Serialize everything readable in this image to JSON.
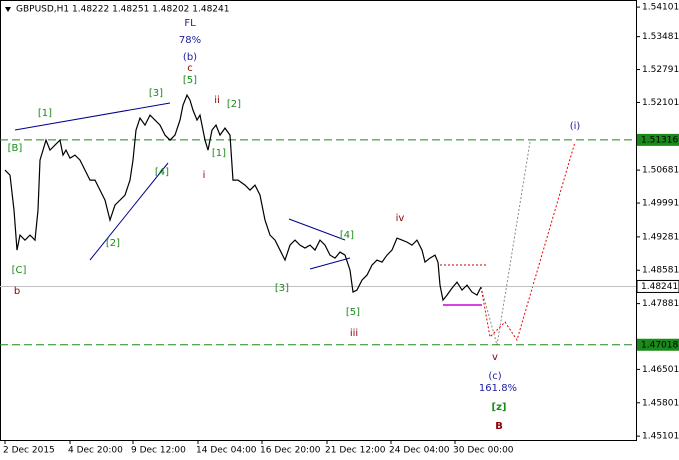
{
  "chart_data": {
    "type": "line",
    "title": "GBPUSD,H1  1.48222 1.48251 1.48202 1.48241",
    "series": [
      {
        "name": "GBPUSD",
        "color": "#000000",
        "x": [
          5,
          10,
          14,
          17,
          20,
          25,
          30,
          35,
          38,
          40,
          43,
          46,
          50,
          55,
          60,
          63,
          66,
          70,
          75,
          80,
          85,
          90,
          95,
          100,
          105,
          110,
          115,
          120,
          125,
          130,
          133,
          136,
          140,
          145,
          150,
          155,
          160,
          165,
          170,
          175,
          180,
          183,
          187,
          190,
          193,
          197,
          200,
          205,
          208,
          212,
          216,
          220,
          225,
          230,
          233,
          238,
          245,
          250,
          255,
          260,
          265,
          270,
          275,
          280,
          285,
          290,
          295,
          300,
          305,
          310,
          315,
          320,
          325,
          330,
          335,
          340,
          345,
          350,
          353,
          357,
          362,
          367,
          372,
          377,
          382,
          387,
          392,
          397,
          402,
          407,
          412,
          417,
          422,
          425,
          430,
          435,
          438,
          440,
          443,
          447,
          452,
          457,
          462,
          467,
          472,
          477,
          481
        ],
        "values": [
          1.50682,
          1.50577,
          1.49843,
          1.49004,
          1.49318,
          1.49213,
          1.49318,
          1.49213,
          1.49843,
          1.50892,
          1.51101,
          1.51311,
          1.51101,
          1.51206,
          1.51311,
          1.50996,
          1.51101,
          1.50933,
          1.50996,
          1.50892,
          1.50682,
          1.50472,
          1.50472,
          1.50262,
          1.50052,
          1.49633,
          1.49948,
          1.50052,
          1.50157,
          1.50472,
          1.50892,
          1.51521,
          1.51773,
          1.51626,
          1.51835,
          1.51731,
          1.51626,
          1.51416,
          1.51311,
          1.51416,
          1.51731,
          1.52045,
          1.52255,
          1.5215,
          1.5194,
          1.51731,
          1.51835,
          1.51311,
          1.51101,
          1.51521,
          1.51626,
          1.51416,
          1.51563,
          1.51416,
          1.50472,
          1.50472,
          1.50367,
          1.50262,
          1.50367,
          1.50157,
          1.49633,
          1.49318,
          1.49213,
          1.49004,
          1.48794,
          1.49108,
          1.49213,
          1.49108,
          1.49046,
          1.49108,
          1.49004,
          1.49213,
          1.49108,
          1.48899,
          1.48836,
          1.48962,
          1.48899,
          1.48584,
          1.48123,
          1.48165,
          1.48374,
          1.48479,
          1.48689,
          1.48794,
          1.48752,
          1.48899,
          1.49004,
          1.49255,
          1.49213,
          1.49171,
          1.49108,
          1.49213,
          1.49004,
          1.48752,
          1.48836,
          1.48899,
          1.48752,
          1.48269,
          1.47955,
          1.4806,
          1.48206,
          1.48332,
          1.48165,
          1.48269,
          1.48123,
          1.4806,
          1.48227
        ]
      }
    ],
    "xlim": [
      0,
      636
    ],
    "xticks": [
      {
        "value": 5,
        "label": "2 Dec 2015"
      },
      {
        "value": 70,
        "label": "4 Dec 20:00"
      },
      {
        "value": 133,
        "label": "9 Dec 12:00"
      },
      {
        "value": 198,
        "label": "14 Dec 04:00"
      },
      {
        "value": 262,
        "label": "16 Dec 20:00"
      },
      {
        "value": 327,
        "label": "21 Dec 12:00"
      },
      {
        "value": 391,
        "label": "24 Dec 04:00"
      },
      {
        "value": 455,
        "label": "30 Dec 00:00"
      }
    ],
    "ylim": [
      1.4502,
      1.5425
    ],
    "yticks": [
      1.54101,
      1.53481,
      1.52791,
      1.52101,
      1.50681,
      1.49991,
      1.49281,
      1.48581,
      1.47881,
      1.46501,
      1.45801,
      1.45101
    ],
    "levels": [
      1.51316,
      1.47018
    ],
    "last_price": 1.48241,
    "annotations": [
      "FL",
      "78%",
      "(b)",
      "c",
      "[5]",
      "[3]",
      "[1]",
      "ii",
      "[2]",
      "[B]",
      "[1]",
      "i",
      "[4]",
      "[2]",
      "iv",
      "[4]",
      "[C]",
      "b",
      "[3]",
      "[5]",
      "iii",
      "v",
      "(c)",
      "161.8%",
      "[z]",
      "B",
      "(i)"
    ]
  }
}
